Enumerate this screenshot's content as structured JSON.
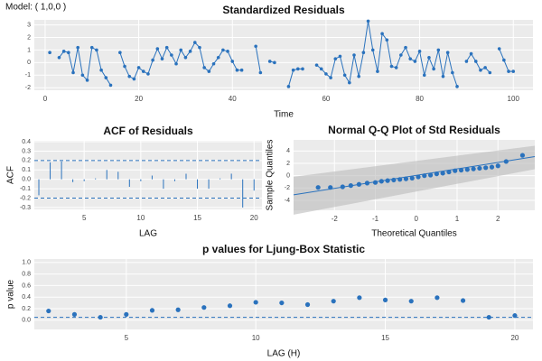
{
  "model_label": "Model: ( 1,0,0 )",
  "chart_data": [
    {
      "type": "line",
      "title": "Standardized Residuals",
      "x_label": "Time",
      "color": "#2a72bd",
      "x": [
        1,
        2,
        3,
        4,
        5,
        6,
        7,
        8,
        9,
        10,
        11,
        12,
        13,
        14,
        15,
        16,
        17,
        18,
        19,
        20,
        21,
        22,
        23,
        24,
        25,
        26,
        27,
        28,
        29,
        30,
        31,
        32,
        33,
        34,
        35,
        36,
        37,
        38,
        39,
        40,
        41,
        42,
        43,
        44,
        45,
        46,
        47,
        48,
        49,
        50,
        51,
        52,
        53,
        54,
        55,
        56,
        57,
        58,
        59,
        60,
        61,
        62,
        63,
        64,
        65,
        66,
        67,
        68,
        69,
        70,
        71,
        72,
        73,
        74,
        75,
        76,
        77,
        78,
        79,
        80,
        81,
        82,
        83,
        84,
        85,
        86,
        87,
        88,
        89,
        90,
        91,
        92,
        93,
        94,
        95,
        96,
        97,
        98,
        99,
        100
      ],
      "values": [
        0.8,
        null,
        0.4,
        0.9,
        0.8,
        -0.8,
        1.2,
        -1.0,
        -1.4,
        1.2,
        1.0,
        -0.6,
        -1.2,
        -1.8,
        null,
        0.8,
        -0.3,
        -1.1,
        -1.3,
        -0.4,
        -0.7,
        -0.9,
        0.2,
        1.1,
        0.3,
        1.2,
        0.6,
        -0.1,
        1.0,
        0.4,
        0.9,
        1.6,
        1.2,
        -0.4,
        -0.7,
        -0.1,
        0.4,
        1.0,
        0.9,
        0.1,
        -0.6,
        -0.6,
        null,
        null,
        1.3,
        -0.8,
        null,
        0.1,
        0.0,
        null,
        null,
        -1.9,
        -0.6,
        -0.5,
        -0.5,
        null,
        null,
        -0.2,
        -0.5,
        -0.9,
        -1.2,
        0.3,
        0.5,
        -1.0,
        -1.6,
        0.6,
        -1.1,
        0.8,
        3.3,
        1.0,
        -0.7,
        2.3,
        1.8,
        -0.3,
        -0.4,
        0.6,
        1.2,
        0.3,
        0.1,
        0.9,
        -1.0,
        0.4,
        -0.5,
        1.0,
        -1.1,
        0.8,
        -0.8,
        -1.9,
        null,
        0.1,
        0.7,
        0.1,
        -0.6,
        -0.4,
        -0.8,
        null,
        1.1,
        0.2,
        -0.7,
        -0.7
      ],
      "xlim": [
        -2.3,
        104.2
      ],
      "ylim": [
        -2.2,
        3.4
      ],
      "xticks": [
        0,
        20,
        40,
        60,
        80,
        100
      ],
      "yticks": [
        -2,
        -1,
        0,
        1,
        2,
        3
      ],
      "grid": true
    },
    {
      "type": "bar",
      "title": "ACF of Residuals",
      "x_label": "LAG",
      "y_label": "ACF",
      "color": "#2a72bd",
      "x": [
        1,
        2,
        3,
        4,
        5,
        6,
        7,
        8,
        9,
        10,
        11,
        12,
        13,
        14,
        15,
        16,
        17,
        18,
        19,
        20
      ],
      "values": [
        -0.17,
        0.18,
        0.19,
        -0.03,
        -0.02,
        0.01,
        0.1,
        0.08,
        -0.08,
        -0.02,
        0.04,
        -0.1,
        -0.02,
        0.06,
        -0.1,
        -0.1,
        0.01,
        0.06,
        -0.3,
        -0.12
      ],
      "reference_lines": [
        0.2,
        -0.2
      ],
      "xlim": [
        0.6,
        20.7
      ],
      "ylim": [
        -0.32,
        0.41
      ],
      "xticks": [
        5,
        10,
        15,
        20
      ],
      "yticks": [
        -0.3,
        -0.2,
        -0.1,
        {
          "value": 0,
          "label": "0.0"
        },
        0.1,
        0.2,
        0.3,
        0.4
      ],
      "grid": true
    },
    {
      "type": "scatter",
      "title": "Normal Q-Q Plot of Std Residuals",
      "x_label": "Theoretical Quantiles",
      "y_label": "Sample Quantiles",
      "color": "#2a72bd",
      "x": [
        -2.4,
        -2.1,
        -1.8,
        -1.6,
        -1.4,
        -1.2,
        -1.0,
        -0.85,
        -0.7,
        -0.55,
        -0.4,
        -0.25,
        -0.1,
        0.05,
        0.2,
        0.35,
        0.5,
        0.65,
        0.8,
        0.95,
        1.1,
        1.25,
        1.4,
        1.55,
        1.7,
        1.85,
        2.0,
        2.2,
        2.6
      ],
      "values": [
        -1.9,
        -1.9,
        -1.8,
        -1.6,
        -1.4,
        -1.2,
        -1.1,
        -0.9,
        -0.8,
        -0.7,
        -0.6,
        -0.5,
        -0.4,
        -0.2,
        0.0,
        0.1,
        0.3,
        0.4,
        0.6,
        0.8,
        0.9,
        1.0,
        1.1,
        1.2,
        1.3,
        1.4,
        1.6,
        2.3,
        3.3
      ],
      "fit_line": {
        "x": [
          -3.0,
          2.9
        ],
        "y": [
          -3.1,
          3.1
        ]
      },
      "xlim": [
        -3.0,
        2.9
      ],
      "ylim": [
        -5.6,
        5.8
      ],
      "xticks": [
        -2,
        -1,
        0,
        1,
        2
      ],
      "yticks": [
        -4,
        -2,
        0,
        2,
        4
      ],
      "grid": true
    },
    {
      "type": "scatter",
      "title": "p values for Ljung-Box Statistic",
      "x_label": "LAG (H)",
      "y_label": "p value",
      "color": "#2a72bd",
      "x": [
        2,
        3,
        4,
        5,
        6,
        7,
        8,
        9,
        10,
        11,
        12,
        13,
        14,
        15,
        16,
        17,
        18,
        19,
        20
      ],
      "values": [
        0.16,
        0.1,
        0.05,
        0.1,
        0.17,
        0.18,
        0.22,
        0.25,
        0.31,
        0.3,
        0.27,
        0.33,
        0.39,
        0.35,
        0.33,
        0.39,
        0.34,
        0.05,
        0.08
      ],
      "reference_lines": [
        0.05
      ],
      "xlim": [
        1.45,
        20.7
      ],
      "ylim": [
        -0.16,
        1.06
      ],
      "xticks": [
        5,
        10,
        15,
        20
      ],
      "yticks": [
        {
          "value": 0,
          "label": "0.0"
        },
        0.2,
        0.4,
        0.6,
        0.8,
        {
          "value": 1,
          "label": "1.0"
        }
      ],
      "grid": true
    }
  ]
}
